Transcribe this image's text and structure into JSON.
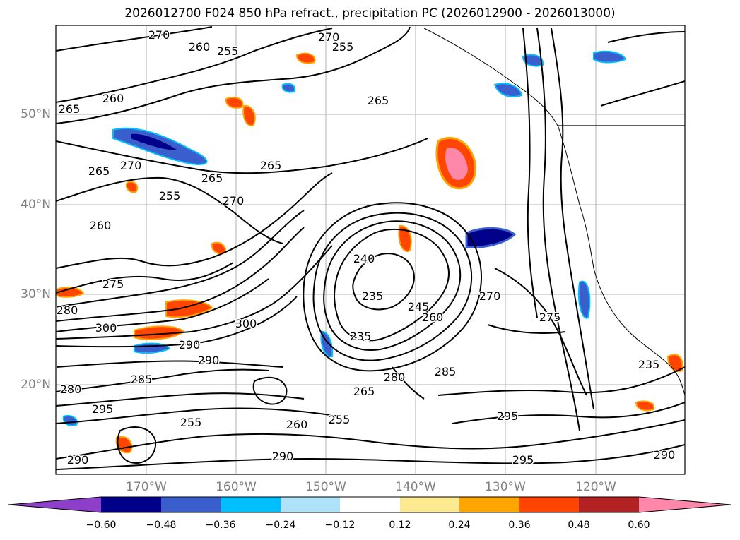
{
  "title": "2026012700 F024 850 hPa refract., precipitation PC (2026012900 - 2026013000)",
  "map": {
    "lat_labels": [
      "50°N",
      "40°N",
      "30°N",
      "20°N"
    ],
    "lon_labels": [
      "170°W",
      "160°W",
      "150°W",
      "140°W",
      "130°W",
      "120°W"
    ],
    "contour_labels": [
      "265",
      "270",
      "260",
      "255",
      "270",
      "255",
      "265",
      "260",
      "265",
      "270",
      "265",
      "260",
      "255",
      "270",
      "265",
      "240",
      "235",
      "235",
      "245",
      "260",
      "270",
      "275",
      "275",
      "280",
      "300",
      "290",
      "300",
      "290",
      "285",
      "280",
      "295",
      "255",
      "265",
      "260",
      "280",
      "295",
      "290",
      "290",
      "295",
      "290",
      "235",
      "255",
      "285"
    ]
  },
  "colorbar": {
    "colors": [
      "#8e3fc9",
      "#00008b",
      "#3a5fcd",
      "#00bfff",
      "#aee2f8",
      "#ffffff",
      "#fde98f",
      "#ffa500",
      "#ff4500",
      "#b22222",
      "#ff88aa"
    ],
    "ticks": [
      "−0.60",
      "−0.48",
      "−0.36",
      "−0.24",
      "−0.12",
      "0.12",
      "0.24",
      "0.36",
      "0.48",
      "0.60"
    ]
  }
}
